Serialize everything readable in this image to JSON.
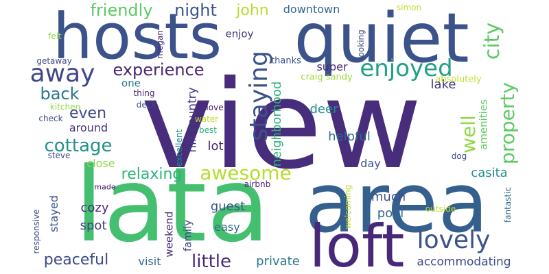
{
  "words": [
    {
      "text": "view",
      "color": "#472d7b"
    },
    {
      "text": "lata",
      "color": "#44bf70"
    },
    {
      "text": "quiet",
      "color": "#3b528b"
    },
    {
      "text": "hosts",
      "color": "#3b528b"
    },
    {
      "text": "area",
      "color": "#355f8d"
    },
    {
      "text": "loft",
      "color": "#482878"
    },
    {
      "text": "away",
      "color": "#3f4788"
    },
    {
      "text": "enjoyed",
      "color": "#1fa187"
    },
    {
      "text": "experience",
      "color": "#482576"
    },
    {
      "text": "friendly",
      "color": "#5ec962"
    },
    {
      "text": "night",
      "color": "#3b528b"
    },
    {
      "text": "john",
      "color": "#b5de2b"
    },
    {
      "text": "downtown",
      "color": "#31688e"
    },
    {
      "text": "city",
      "color": "#5ec962"
    },
    {
      "text": "lake",
      "color": "#443983"
    },
    {
      "text": "staying",
      "color": "#3b528b"
    },
    {
      "text": "property",
      "color": "#5ec962"
    },
    {
      "text": "cottage",
      "color": "#21918c"
    },
    {
      "text": "back",
      "color": "#2a788e"
    },
    {
      "text": "even",
      "color": "#3e4989"
    },
    {
      "text": "around",
      "color": "#46337f"
    },
    {
      "text": "relaxing",
      "color": "#2db27d"
    },
    {
      "text": "awesome",
      "color": "#b5de2b"
    },
    {
      "text": "well",
      "color": "#8fd744"
    },
    {
      "text": "hill country",
      "color": "#443983"
    },
    {
      "text": "neighborhood",
      "color": "#2db27d"
    },
    {
      "text": "lovely",
      "color": "#3b528b"
    },
    {
      "text": "little",
      "color": "#482878"
    },
    {
      "text": "peaceful",
      "color": "#3e4989"
    },
    {
      "text": "private",
      "color": "#2a788e"
    },
    {
      "text": "accommodating",
      "color": "#3e4989"
    },
    {
      "text": "enjoy",
      "color": "#46337f"
    },
    {
      "text": "super",
      "color": "#482878"
    },
    {
      "text": "deer",
      "color": "#21918c"
    },
    {
      "text": "helpful",
      "color": "#31688e"
    },
    {
      "text": "lot",
      "color": "#482878"
    },
    {
      "text": "day",
      "color": "#3b528b"
    },
    {
      "text": "amenities",
      "color": "#5ec962"
    },
    {
      "text": "casita",
      "color": "#228c8d"
    },
    {
      "text": "cozy",
      "color": "#482878"
    },
    {
      "text": "spot",
      "color": "#433e85"
    },
    {
      "text": "stayed",
      "color": "#3b528b"
    },
    {
      "text": "guest",
      "color": "#3b528b"
    },
    {
      "text": "easy",
      "color": "#31688e"
    },
    {
      "text": "much",
      "color": "#3b528b"
    },
    {
      "text": "pool",
      "color": "#31688e"
    },
    {
      "text": "close",
      "color": "#8fd744"
    },
    {
      "text": "weekend",
      "color": "#472d7b"
    },
    {
      "text": "family",
      "color": "#3e4989"
    },
    {
      "text": "visit",
      "color": "#31688e"
    },
    {
      "text": "one",
      "color": "#2a788e"
    },
    {
      "text": "thanks",
      "color": "#3b528b"
    },
    {
      "text": "craig sandy",
      "color": "#a0da39"
    },
    {
      "text": "absolutely",
      "color": "#bddf26"
    },
    {
      "text": "thing",
      "color": "#482475"
    },
    {
      "text": "deck",
      "color": "#3e4989"
    },
    {
      "text": "kitchen",
      "color": "#8fd744"
    },
    {
      "text": "check",
      "color": "#3e4989"
    },
    {
      "text": "love",
      "color": "#471164"
    },
    {
      "text": "water",
      "color": "#bddf26"
    },
    {
      "text": "best",
      "color": "#2db27d"
    },
    {
      "text": "excellent",
      "color": "#228c8d"
    },
    {
      "text": "steve",
      "color": "#3e4989"
    },
    {
      "text": "made",
      "color": "#471164"
    },
    {
      "text": "airbnb",
      "color": "#482475"
    },
    {
      "text": "dog",
      "color": "#3e4989"
    },
    {
      "text": "felt",
      "color": "#8fd744"
    },
    {
      "text": "megan",
      "color": "#482878"
    },
    {
      "text": "getaway",
      "color": "#3e4989"
    },
    {
      "text": "simon",
      "color": "#bddf26"
    },
    {
      "text": "looking",
      "color": "#3e4989"
    },
    {
      "text": "responsive",
      "color": "#3e4989"
    },
    {
      "text": "welcoming",
      "color": "#bddf26"
    },
    {
      "text": "outside",
      "color": "#bddf26"
    },
    {
      "text": "fantastic",
      "color": "#31688e"
    }
  ]
}
